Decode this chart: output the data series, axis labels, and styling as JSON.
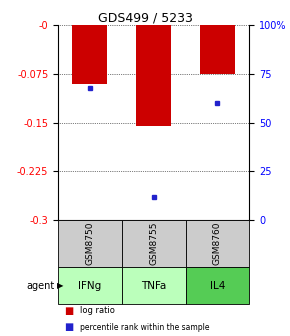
{
  "title": "GDS499 / 5233",
  "samples": [
    "GSM8750",
    "GSM8755",
    "GSM8760"
  ],
  "agents": [
    "IFNg",
    "TNFa",
    "IL4"
  ],
  "log_ratios": [
    -0.09,
    -0.155,
    -0.075
  ],
  "percentile_ranks": [
    0.68,
    0.12,
    0.6
  ],
  "ymin": -0.3,
  "ymax": 0.0,
  "yticks": [
    0.0,
    -0.075,
    -0.15,
    -0.225,
    -0.3
  ],
  "ytick_labels": [
    "-0",
    "-0.075",
    "-0.15",
    "-0.225",
    "-0.3"
  ],
  "right_ytick_labels": [
    "100%",
    "75",
    "50",
    "25",
    "0"
  ],
  "bar_color": "#cc0000",
  "dot_color": "#2222cc",
  "agent_colors": [
    "#bbffbb",
    "#bbffbb",
    "#55cc55"
  ],
  "sample_box_color": "#cccccc",
  "legend_bar_color": "#cc0000",
  "legend_dot_color": "#2222cc"
}
